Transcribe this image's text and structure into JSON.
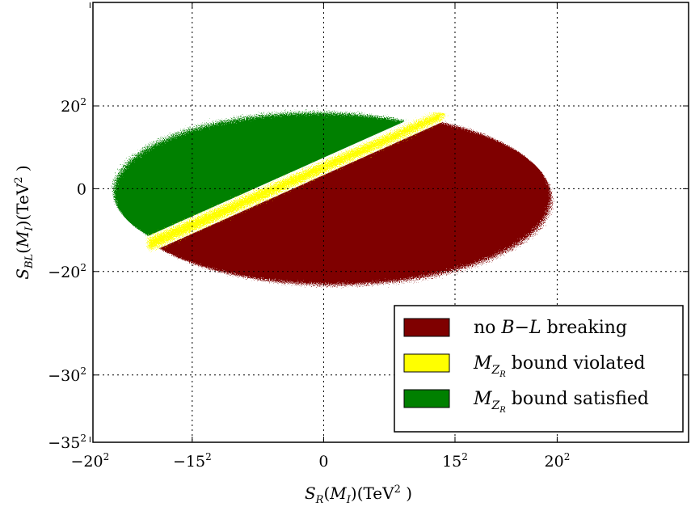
{
  "chart_data": {
    "type": "scatter",
    "title": "",
    "xlabel": "S_R(M_I)(TeV^2 )",
    "ylabel": "S_BL(M_I)(TeV^2 )",
    "xlabel_parts": {
      "main": "S",
      "sub": "R",
      "rest1": "(M",
      "sub2": "I",
      "rest2": ")(TeV",
      "sup": "2",
      "rest3": " )"
    },
    "ylabel_parts": {
      "main": "S",
      "sub": "BL",
      "rest1": "(M",
      "sub2": "I",
      "rest2": ")(TeV",
      "sup": "2",
      "rest3": " )"
    },
    "xlim": [
      -395,
      625
    ],
    "ylim": [
      -1225,
      900
    ],
    "grid": true,
    "grid_style": "dotted",
    "x_ticks": [
      {
        "base": "−20",
        "exp": "2",
        "value": -400
      },
      {
        "base": "−15",
        "exp": "2",
        "value": -225
      },
      {
        "base": "0",
        "exp": "",
        "value": 0
      },
      {
        "base": "15",
        "exp": "2",
        "value": 225
      },
      {
        "base": "20",
        "exp": "2",
        "value": 400
      }
    ],
    "y_ticks": [
      {
        "base": "20",
        "exp": "2",
        "value": 400
      },
      {
        "base": "0",
        "exp": "",
        "value": 0
      },
      {
        "base": "−20",
        "exp": "2",
        "value": -400
      },
      {
        "base": "−30",
        "exp": "2",
        "value": -900
      },
      {
        "base": "−35",
        "exp": "2",
        "value": -1225
      }
    ],
    "legend_position": "bottom-right",
    "series": [
      {
        "name_parts": {
          "pre": "no ",
          "math": "B−L",
          "post": " breaking"
        },
        "color": "#7f0000",
        "region": {
          "center": [
            20,
            -45
          ],
          "rx": 370,
          "ry": 420,
          "side": "below-band"
        }
      },
      {
        "name_parts": {
          "pre": "",
          "math": "M",
          "sub": "Z",
          "subsub": "R",
          "post": " bound violated"
        },
        "color": "#ffff00",
        "band": {
          "start": [
            -300,
            -270
          ],
          "end": [
            200,
            360
          ],
          "halfwidth": 42
        }
      },
      {
        "name_parts": {
          "pre": "",
          "math": "M",
          "sub": "Z",
          "subsub": "R",
          "post": " bound satisfied"
        },
        "color": "#008000",
        "region": {
          "side": "above-band"
        }
      }
    ]
  }
}
